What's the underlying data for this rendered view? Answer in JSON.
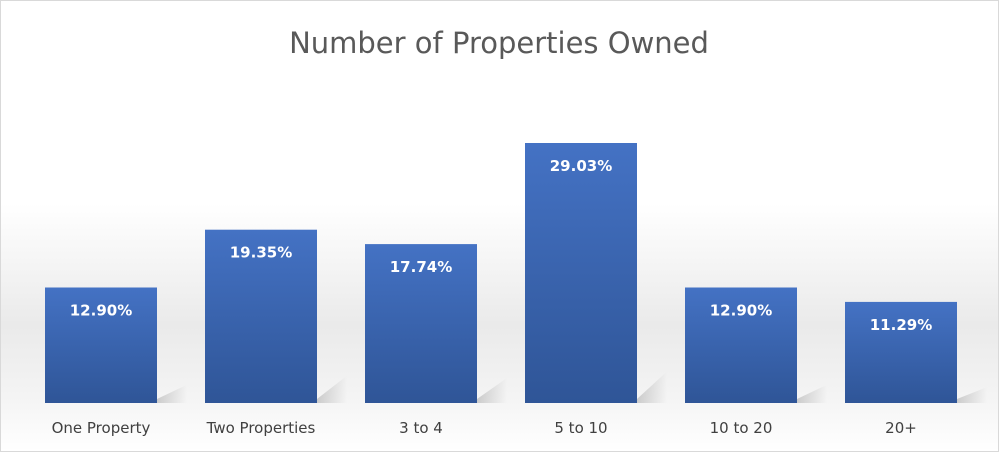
{
  "chart_data": {
    "type": "bar",
    "title": "Number of Properties Owned",
    "categories": [
      "One Property",
      "Two Properties",
      "3 to 4",
      "5 to 10",
      "10 to 20",
      "20+"
    ],
    "values": [
      12.9,
      19.35,
      17.74,
      29.03,
      12.9,
      11.29
    ],
    "data_labels": [
      "12.90%",
      "19.35%",
      "17.74%",
      "29.03%",
      "12.90%",
      "11.29%"
    ],
    "unit": "%",
    "xlabel": "",
    "ylabel": "",
    "ylim": [
      0,
      35
    ],
    "grid": false,
    "legend": "none",
    "colors": {
      "bar_top": "#4472c4",
      "bar_bottom": "#2f5597",
      "title": "#595959",
      "tick_text": "#404040",
      "label_text": "#ffffff"
    }
  }
}
